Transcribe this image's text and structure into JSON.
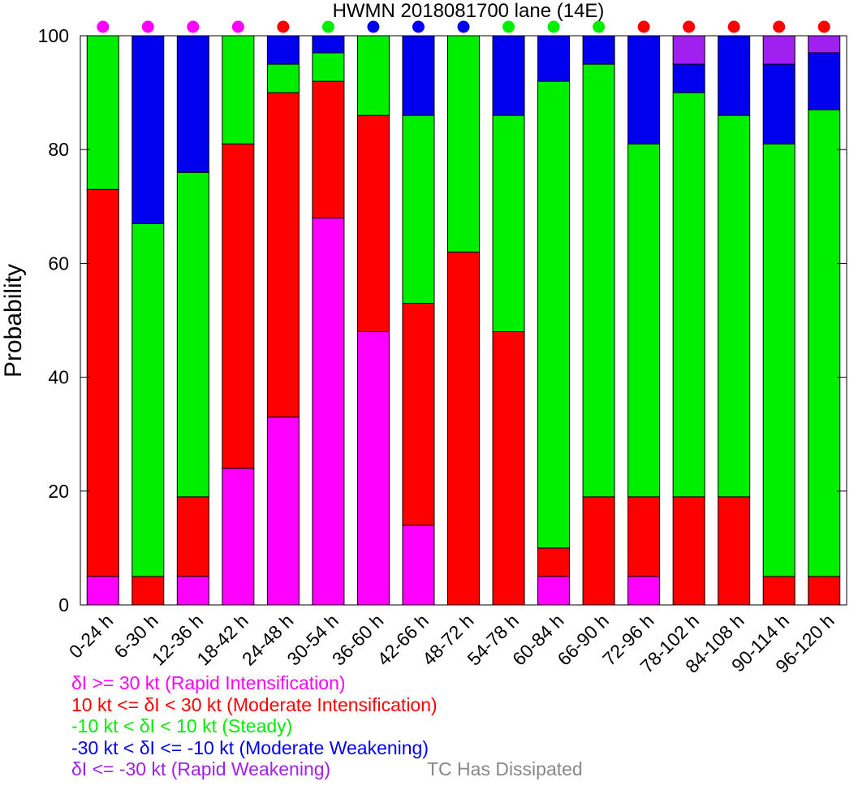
{
  "chart_data": {
    "type": "bar",
    "stacked": true,
    "title": "HWMN 2018081700 lane (14E)",
    "xlabel": "",
    "ylabel": "Probability",
    "ylim": [
      0,
      100
    ],
    "yticks": [
      0,
      20,
      40,
      60,
      80,
      100
    ],
    "categories": [
      "0-24 h",
      "6-30 h",
      "12-36 h",
      "18-42 h",
      "24-48 h",
      "30-54 h",
      "36-60 h",
      "42-66 h",
      "48-72 h",
      "54-78 h",
      "60-84 h",
      "66-90 h",
      "72-96 h",
      "78-102 h",
      "84-108 h",
      "90-114 h",
      "96-120 h"
    ],
    "series": [
      {
        "name": "δI >= 30 kt (Rapid Intensification)",
        "color": "#ff00ff",
        "values": [
          5,
          0,
          5,
          24,
          33,
          68,
          48,
          14,
          0,
          0,
          5,
          0,
          5,
          0,
          0,
          0,
          0
        ]
      },
      {
        "name": "10 kt <= δI < 30 kt (Moderate Intensification)",
        "color": "#ff0000",
        "values": [
          68,
          5,
          14,
          57,
          57,
          24,
          38,
          39,
          62,
          48,
          5,
          19,
          14,
          19,
          19,
          5,
          5
        ]
      },
      {
        "name": "-10 kt < δI < 10 kt (Steady)",
        "color": "#00ee00",
        "values": [
          27,
          62,
          57,
          19,
          5,
          5,
          14,
          33,
          38,
          38,
          82,
          76,
          62,
          71,
          67,
          76,
          82
        ]
      },
      {
        "name": "-30 kt < δI <= -10 kt (Moderate Weakening)",
        "color": "#0000ee",
        "values": [
          0,
          33,
          24,
          0,
          5,
          3,
          0,
          14,
          0,
          14,
          8,
          5,
          19,
          5,
          14,
          14,
          10
        ]
      },
      {
        "name": "δI <= -30 kt (Rapid Weakening)",
        "color": "#a020f0",
        "values": [
          0,
          0,
          0,
          0,
          0,
          0,
          0,
          0,
          0,
          0,
          0,
          0,
          0,
          5,
          0,
          5,
          3
        ]
      }
    ],
    "top_markers": [
      "#ff00ff",
      "#ff00ff",
      "#ff00ff",
      "#ff00ff",
      "#ff0000",
      "#00ee00",
      "#0000ee",
      "#0000ee",
      "#0000ee",
      "#00ee00",
      "#00ee00",
      "#00ee00",
      "#ff0000",
      "#ff0000",
      "#ff0000",
      "#ff0000",
      "#ff0000"
    ],
    "dissipated_label": "TC Has Dissipated",
    "dissipated_color": "#888888",
    "grid": false,
    "legend_position": "bottom-left"
  }
}
